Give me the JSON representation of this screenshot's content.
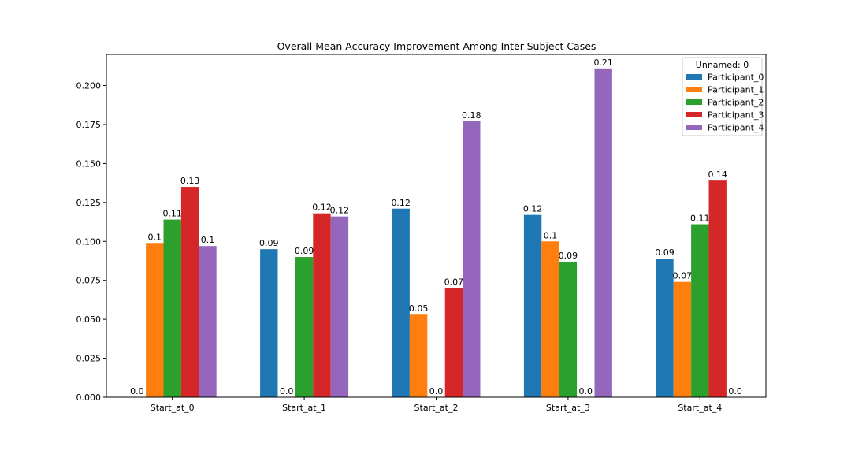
{
  "chart_data": {
    "type": "bar",
    "title": "Overall Mean Accuracy Improvement Among Inter-Subject Cases",
    "xlabel": "",
    "ylabel": "",
    "categories": [
      "Start_at_0",
      "Start_at_1",
      "Start_at_2",
      "Start_at_3",
      "Start_at_4"
    ],
    "ylim": [
      0,
      0.22
    ],
    "yticks": [
      "0.000",
      "0.025",
      "0.050",
      "0.075",
      "0.100",
      "0.125",
      "0.150",
      "0.175",
      "0.200"
    ],
    "grid": false,
    "legend": {
      "title": "Unnamed: 0",
      "placement": "top-right"
    },
    "series": [
      {
        "name": "Participant_0",
        "color": "#1f77b4",
        "values": [
          0.0,
          0.095,
          0.121,
          0.117,
          0.089
        ],
        "labels": [
          "0.0",
          "0.09",
          "0.12",
          "0.12",
          "0.09"
        ]
      },
      {
        "name": "Participant_1",
        "color": "#ff7f0e",
        "values": [
          0.099,
          0.0,
          0.053,
          0.1,
          0.074
        ],
        "labels": [
          "0.1",
          "0.0",
          "0.05",
          "0.1",
          "0.07"
        ]
      },
      {
        "name": "Participant_2",
        "color": "#2ca02c",
        "values": [
          0.114,
          0.09,
          0.0,
          0.087,
          0.111
        ],
        "labels": [
          "0.11",
          "0.09",
          "0.0",
          "0.09",
          "0.11"
        ]
      },
      {
        "name": "Participant_3",
        "color": "#d62728",
        "values": [
          0.135,
          0.118,
          0.07,
          0.0,
          0.139
        ],
        "labels": [
          "0.13",
          "0.12",
          "0.07",
          "0.0",
          "0.14"
        ]
      },
      {
        "name": "Participant_4",
        "color": "#9467bd",
        "values": [
          0.097,
          0.116,
          0.177,
          0.211,
          0.0
        ],
        "labels": [
          "0.1",
          "0.12",
          "0.18",
          "0.21",
          "0.0"
        ]
      }
    ]
  }
}
